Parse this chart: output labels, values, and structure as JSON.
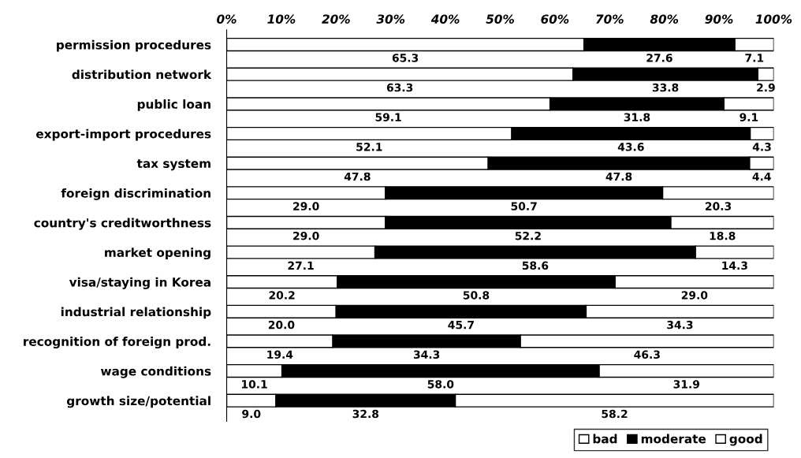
{
  "chart_data": {
    "type": "bar",
    "orientation": "horizontal",
    "stacked": true,
    "categories": [
      "permission procedures",
      "distribution network",
      "public loan",
      "export-import procedures",
      "tax system",
      "foreign discrimination",
      "country's creditworthness",
      "market opening",
      "visa/staying in Korea",
      "industrial relationship",
      "recognition of foreign prod.",
      "wage conditions",
      "growth size/potential"
    ],
    "series": [
      {
        "name": "bad",
        "color": "#ffffff",
        "values": [
          65.3,
          63.3,
          59.1,
          52.1,
          47.8,
          29.0,
          29.0,
          27.1,
          20.2,
          20.0,
          19.4,
          10.1,
          9.0
        ],
        "value_labels": [
          "65.3",
          "63.3",
          "59.1",
          "52.1",
          "47.8",
          "29.0",
          "29.0",
          "27.1",
          "20.2",
          "20.0",
          "19.4",
          "10.1",
          "9.0"
        ]
      },
      {
        "name": "moderate",
        "color": "#000000",
        "values": [
          27.6,
          33.8,
          31.8,
          43.6,
          47.8,
          50.7,
          52.2,
          58.6,
          50.8,
          45.7,
          34.3,
          58.0,
          32.8
        ],
        "value_labels": [
          "27.6",
          "33.8",
          "31.8",
          "43.6",
          "47.8",
          "50.7",
          "52.2",
          "58.6",
          "50.8",
          "45.7",
          "34.3",
          "58.0",
          "32.8"
        ]
      },
      {
        "name": "good",
        "color": "#ffffff",
        "values": [
          7.1,
          2.9,
          9.1,
          4.3,
          4.4,
          20.3,
          18.8,
          14.3,
          29.0,
          34.3,
          46.3,
          31.9,
          58.2
        ],
        "value_labels": [
          "7.1",
          "2.9",
          "9.1",
          "4.3",
          "4.4",
          "20.3",
          "18.8",
          "14.3",
          "29.0",
          "34.3",
          "46.3",
          "31.9",
          "58.2"
        ]
      }
    ],
    "xlim": [
      0,
      100
    ],
    "xticks": [
      {
        "value": 0,
        "label": "0%"
      },
      {
        "value": 10,
        "label": "10%"
      },
      {
        "value": 20,
        "label": "20%"
      },
      {
        "value": 30,
        "label": "30%"
      },
      {
        "value": 40,
        "label": "40%"
      },
      {
        "value": 50,
        "label": "50%"
      },
      {
        "value": 60,
        "label": "60%"
      },
      {
        "value": 70,
        "label": "70%"
      },
      {
        "value": 80,
        "label": "80%"
      },
      {
        "value": 90,
        "label": "90%"
      },
      {
        "value": 100,
        "label": "100%"
      }
    ],
    "grid": false,
    "legend": "bottom right"
  }
}
